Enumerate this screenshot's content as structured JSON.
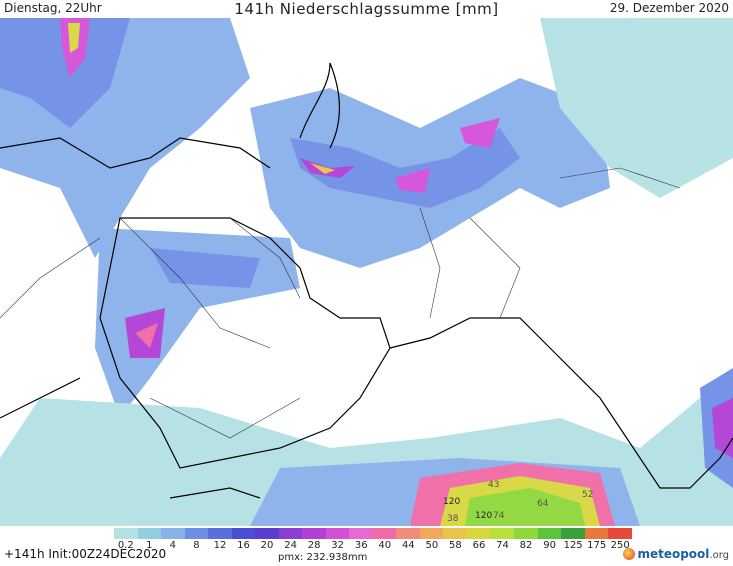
{
  "header": {
    "left": "Dienstag, 22Uhr",
    "title": "141h Niederschlagssumme [mm]",
    "right": "29. Dezember 2020"
  },
  "legend": {
    "labels": [
      "0.2",
      "1",
      "4",
      "8",
      "12",
      "16",
      "20",
      "24",
      "28",
      "32",
      "36",
      "40",
      "44",
      "50",
      "58",
      "66",
      "74",
      "82",
      "90",
      "125",
      "175",
      "250"
    ],
    "colors": [
      "#b4e1e4",
      "#8fcfe0",
      "#8ab1ea",
      "#6e8ee6",
      "#5a6fde",
      "#4a4fd6",
      "#5a3ecf",
      "#8a3ed6",
      "#b23ed6",
      "#d44fd8",
      "#e869d0",
      "#f06aa5",
      "#f08c7a",
      "#f0a95a",
      "#e8c44a",
      "#d8d83e",
      "#b8e03a",
      "#8ed83a",
      "#5cc43a",
      "#3aa03a",
      "#e8783a",
      "#e84a3a"
    ]
  },
  "map_labels": [
    "120",
    "120",
    "38",
    "74",
    "64",
    "52",
    "43"
  ],
  "footer": {
    "run": "+141h Init:00Z24DEC2020",
    "pmx": "pmx: 232.938mm",
    "logo_main": "meteopool",
    "logo_tld": ".org"
  }
}
